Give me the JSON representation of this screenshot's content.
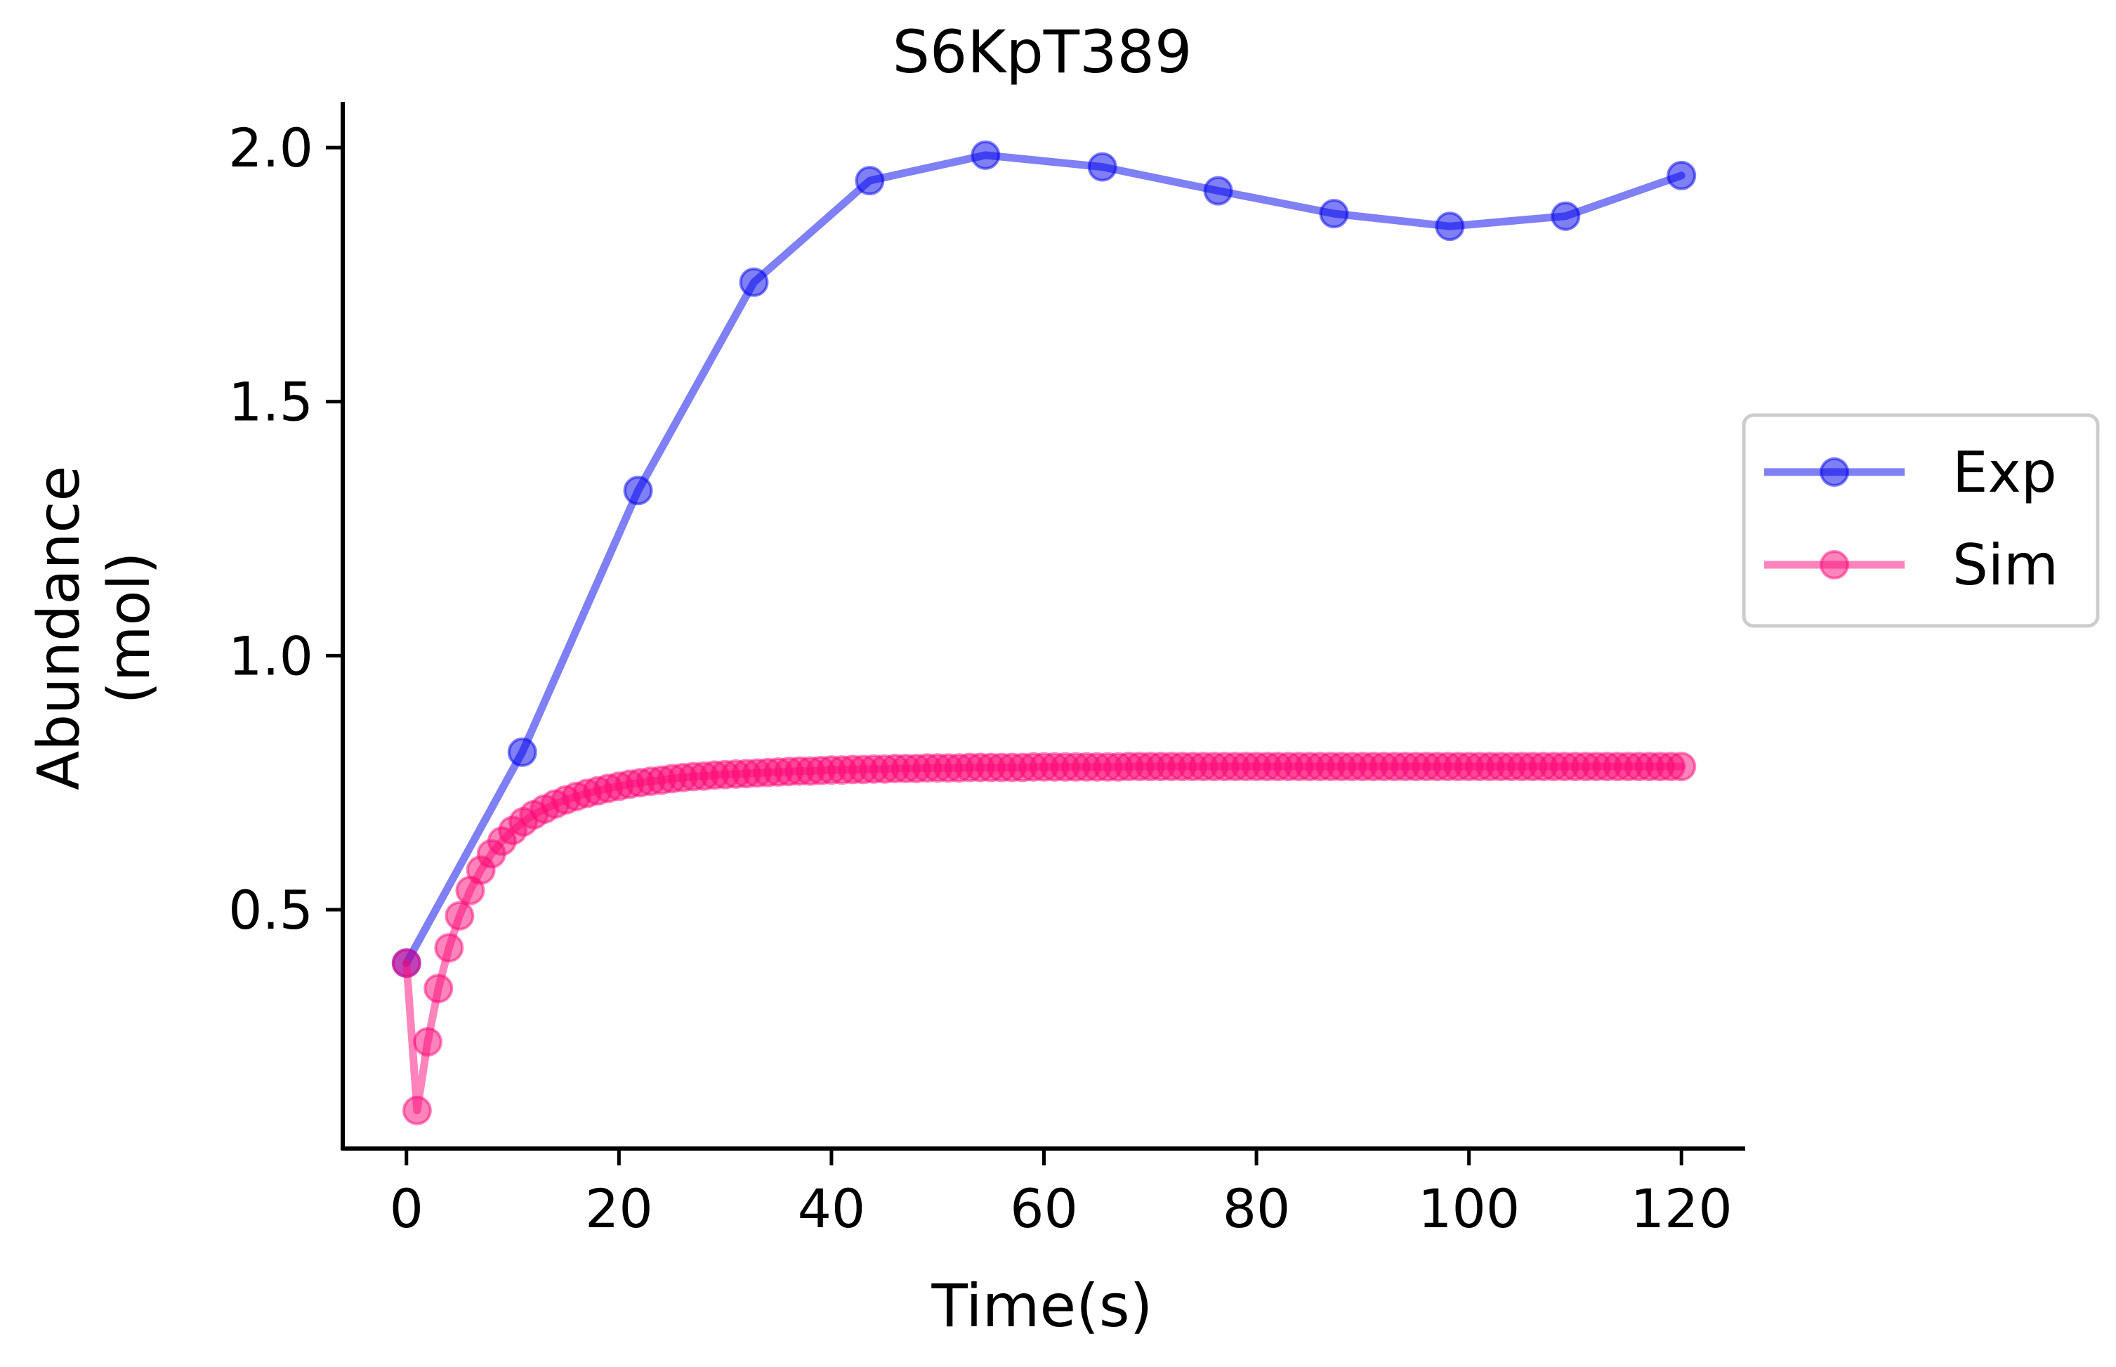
{
  "chart_data": {
    "type": "line",
    "title": "S6KpT389",
    "xlabel": "Time(s)",
    "ylabel_lines": [
      "Abundance",
      "(mol)"
    ],
    "xlim": [
      -6,
      126
    ],
    "ylim": [
      0.03,
      2.09
    ],
    "x_ticks": [
      0,
      20,
      40,
      60,
      80,
      100,
      120
    ],
    "x_tick_labels": [
      "0",
      "20",
      "40",
      "60",
      "80",
      "100",
      "120"
    ],
    "y_ticks": [
      0.5,
      1.0,
      1.5,
      2.0
    ],
    "y_tick_labels": [
      "0.5",
      "1.0",
      "1.5",
      "2.0"
    ],
    "grid": false,
    "legend_position": "center-right, outside plot",
    "series": [
      {
        "name": "Exp",
        "color": "#0000ee",
        "x": [
          0,
          10.9,
          21.8,
          32.7,
          43.6,
          54.5,
          65.5,
          76.4,
          87.3,
          98.2,
          109.1,
          120
        ],
        "y": [
          0.395,
          0.81,
          1.325,
          1.735,
          1.935,
          1.985,
          1.962,
          1.915,
          1.87,
          1.845,
          1.865,
          1.945
        ]
      },
      {
        "name": "Sim",
        "color": "#ff0a78",
        "x": [
          0,
          1,
          2,
          3,
          4,
          5,
          6,
          7,
          8,
          9,
          10,
          11,
          12,
          13,
          14,
          15,
          16,
          17,
          18,
          19,
          20,
          21,
          22,
          23,
          24,
          25,
          26,
          27,
          28,
          29,
          30,
          31,
          32,
          33,
          34,
          35,
          36,
          37,
          38,
          39,
          40,
          41,
          42,
          43,
          44,
          45,
          46,
          47,
          48,
          49,
          50,
          51,
          52,
          53,
          54,
          55,
          56,
          57,
          58,
          59,
          60,
          61,
          62,
          63,
          64,
          65,
          66,
          67,
          68,
          69,
          70,
          71,
          72,
          73,
          74,
          75,
          76,
          77,
          78,
          79,
          80,
          81,
          82,
          83,
          84,
          85,
          86,
          87,
          88,
          89,
          90,
          91,
          92,
          93,
          94,
          95,
          96,
          97,
          98,
          99,
          100,
          101,
          102,
          103,
          104,
          105,
          106,
          107,
          108,
          109,
          110,
          111,
          112,
          113,
          114,
          115,
          116,
          117,
          118,
          119,
          120
        ],
        "y": [
          0.395,
          0.105,
          0.24,
          0.345,
          0.425,
          0.488,
          0.538,
          0.578,
          0.61,
          0.635,
          0.656,
          0.673,
          0.687,
          0.698,
          0.708,
          0.716,
          0.723,
          0.729,
          0.734,
          0.739,
          0.743,
          0.747,
          0.75,
          0.753,
          0.755,
          0.758,
          0.76,
          0.762,
          0.763,
          0.765,
          0.766,
          0.767,
          0.768,
          0.769,
          0.77,
          0.771,
          0.772,
          0.773,
          0.773,
          0.774,
          0.775,
          0.775,
          0.776,
          0.776,
          0.777,
          0.777,
          0.778,
          0.778,
          0.778,
          0.779,
          0.779,
          0.779,
          0.779,
          0.78,
          0.78,
          0.78,
          0.78,
          0.78,
          0.78,
          0.781,
          0.781,
          0.781,
          0.781,
          0.781,
          0.781,
          0.781,
          0.781,
          0.781,
          0.782,
          0.782,
          0.782,
          0.782,
          0.782,
          0.782,
          0.782,
          0.782,
          0.782,
          0.782,
          0.782,
          0.782,
          0.782,
          0.782,
          0.782,
          0.782,
          0.782,
          0.782,
          0.782,
          0.782,
          0.782,
          0.782,
          0.782,
          0.782,
          0.782,
          0.782,
          0.782,
          0.782,
          0.782,
          0.782,
          0.782,
          0.782,
          0.782,
          0.782,
          0.782,
          0.782,
          0.782,
          0.782,
          0.782,
          0.782,
          0.782,
          0.782,
          0.782,
          0.782,
          0.782,
          0.782,
          0.782,
          0.782,
          0.782,
          0.782,
          0.782,
          0.782,
          0.782
        ]
      }
    ]
  }
}
